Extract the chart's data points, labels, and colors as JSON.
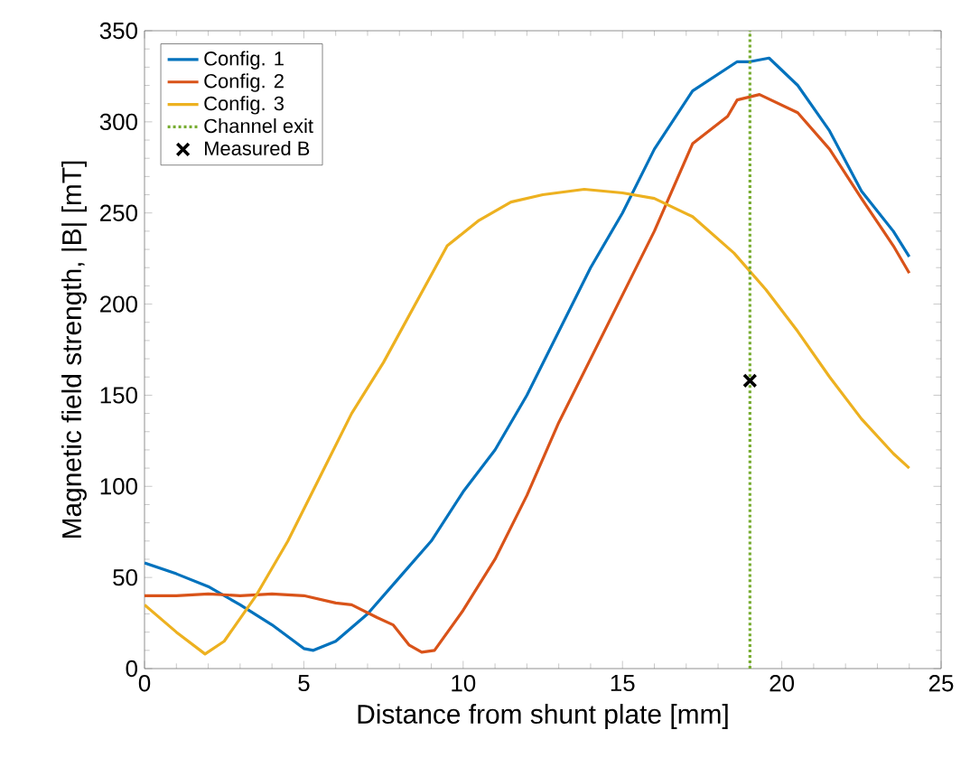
{
  "chart_data": {
    "type": "line",
    "xlabel": "Distance from shunt plate [mm]",
    "ylabel": "Magnetic field strength, |B| [mT]",
    "xlim": [
      0,
      25
    ],
    "ylim": [
      0,
      350
    ],
    "xticks": [
      0,
      5,
      10,
      15,
      20,
      25
    ],
    "yticks": [
      0,
      50,
      100,
      150,
      200,
      250,
      300,
      350
    ],
    "grid": false,
    "legend": "top left",
    "series": [
      {
        "name": "Config. 1",
        "color": "#0072bd",
        "x": [
          0,
          1,
          2,
          3,
          4,
          5,
          5.3,
          6,
          7,
          8,
          9,
          10,
          11,
          12,
          13,
          14,
          15,
          16,
          17.2,
          18.6,
          19,
          19.6,
          20.5,
          21.5,
          22.5,
          23.5,
          24
        ],
        "values": [
          58,
          52,
          45,
          35,
          24,
          11,
          10,
          15,
          30,
          50,
          70,
          97,
          120,
          150,
          185,
          220,
          250,
          285,
          317,
          333,
          333,
          335,
          320,
          295,
          262,
          240,
          226
        ]
      },
      {
        "name": "Config. 2",
        "color": "#d95319",
        "x": [
          0,
          1,
          2,
          3,
          4,
          5,
          6,
          6.5,
          7.3,
          7.8,
          8.3,
          8.7,
          9.1,
          10,
          11,
          12,
          13,
          14,
          15,
          16,
          17.2,
          18.3,
          18.6,
          19.3,
          20.5,
          21.5,
          22.5,
          23.5,
          24
        ],
        "values": [
          40,
          40,
          41,
          40,
          41,
          40,
          36,
          35,
          28,
          24,
          13,
          9,
          10,
          32,
          60,
          95,
          135,
          170,
          205,
          240,
          288,
          303,
          312,
          315,
          305,
          285,
          258,
          232,
          217
        ]
      },
      {
        "name": "Config. 3",
        "color": "#edb120",
        "x": [
          0,
          1,
          1.9,
          2.5,
          3.5,
          4.5,
          5.5,
          6.5,
          7.5,
          8.5,
          9.5,
          10.5,
          11.5,
          12.5,
          13.8,
          15,
          16,
          17.2,
          18.5,
          19.5,
          20.5,
          21.5,
          22.5,
          23.5,
          24
        ],
        "values": [
          35,
          20,
          8,
          15,
          40,
          70,
          105,
          140,
          168,
          200,
          232,
          246,
          256,
          260,
          263,
          261,
          258,
          248,
          228,
          208,
          185,
          160,
          137,
          118,
          110
        ]
      },
      {
        "name": "Channel exit",
        "color": "#77ac30",
        "line_style": "dotted",
        "x": [
          19,
          19
        ],
        "values": [
          0,
          350
        ]
      },
      {
        "name": "Measured B",
        "type": "scatter",
        "color": "#000000",
        "marker": "cross",
        "x": [
          19
        ],
        "values": [
          158
        ]
      }
    ]
  }
}
